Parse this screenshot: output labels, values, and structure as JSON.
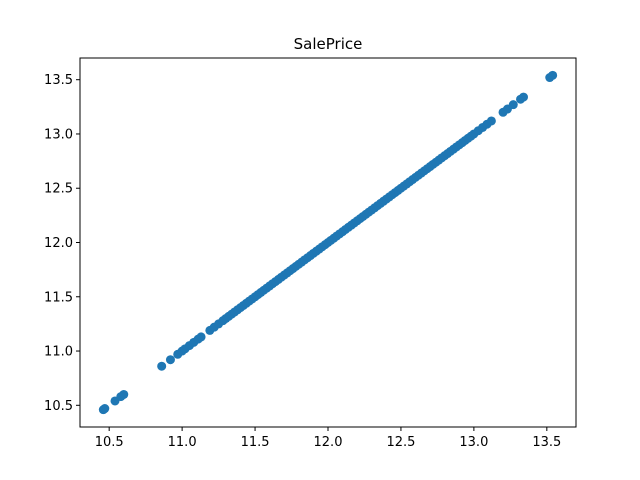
{
  "chart_data": {
    "type": "scatter",
    "title": "SalePrice",
    "xlabel": "",
    "ylabel": "",
    "xlim": [
      10.3,
      13.7
    ],
    "ylim": [
      10.3,
      13.7
    ],
    "xticks": [
      10.5,
      11.0,
      11.5,
      12.0,
      12.5,
      13.0,
      13.5
    ],
    "yticks": [
      10.5,
      11.0,
      11.5,
      12.0,
      12.5,
      13.0,
      13.5
    ],
    "xtick_labels": [
      "10.5",
      "11.0",
      "11.5",
      "12.0",
      "12.5",
      "13.0",
      "13.5"
    ],
    "ytick_labels": [
      "10.5",
      "11.0",
      "11.5",
      "12.0",
      "12.5",
      "13.0",
      "13.5"
    ],
    "grid": false,
    "marker_color": "#1f77b4",
    "series": [
      {
        "x": [
          10.46,
          10.47,
          10.54,
          10.58,
          10.6,
          10.86,
          10.92,
          10.97,
          11.0,
          11.02,
          11.05,
          11.08,
          11.11,
          11.13,
          11.19,
          11.22,
          11.25,
          11.28,
          11.3,
          11.32,
          11.34,
          11.36,
          11.38,
          11.4,
          11.42,
          11.44,
          11.46,
          11.48,
          11.5,
          11.52,
          11.54,
          11.56,
          11.58,
          11.6,
          11.62,
          11.64,
          11.66,
          11.68,
          11.7,
          11.72,
          11.74,
          11.76,
          11.78,
          11.8,
          11.82,
          11.84,
          11.86,
          11.88,
          11.9,
          11.92,
          11.94,
          11.96,
          11.98,
          12.0,
          12.02,
          12.04,
          12.06,
          12.08,
          12.1,
          12.12,
          12.14,
          12.16,
          12.18,
          12.2,
          12.22,
          12.24,
          12.26,
          12.28,
          12.3,
          12.32,
          12.34,
          12.36,
          12.38,
          12.4,
          12.42,
          12.44,
          12.46,
          12.48,
          12.5,
          12.52,
          12.54,
          12.56,
          12.58,
          12.6,
          12.62,
          12.64,
          12.66,
          12.68,
          12.7,
          12.72,
          12.74,
          12.76,
          12.78,
          12.8,
          12.82,
          12.84,
          12.86,
          12.88,
          12.9,
          12.92,
          12.94,
          12.96,
          12.98,
          13.0,
          13.03,
          13.06,
          13.09,
          13.12,
          13.2,
          13.23,
          13.27,
          13.32,
          13.34,
          13.52,
          13.54
        ],
        "y": [
          10.46,
          10.47,
          10.54,
          10.58,
          10.6,
          10.86,
          10.92,
          10.97,
          11.0,
          11.02,
          11.05,
          11.08,
          11.11,
          11.13,
          11.19,
          11.22,
          11.25,
          11.28,
          11.3,
          11.32,
          11.34,
          11.36,
          11.38,
          11.4,
          11.42,
          11.44,
          11.46,
          11.48,
          11.5,
          11.52,
          11.54,
          11.56,
          11.58,
          11.6,
          11.62,
          11.64,
          11.66,
          11.68,
          11.7,
          11.72,
          11.74,
          11.76,
          11.78,
          11.8,
          11.82,
          11.84,
          11.86,
          11.88,
          11.9,
          11.92,
          11.94,
          11.96,
          11.98,
          12.0,
          12.02,
          12.04,
          12.06,
          12.08,
          12.1,
          12.12,
          12.14,
          12.16,
          12.18,
          12.2,
          12.22,
          12.24,
          12.26,
          12.28,
          12.3,
          12.32,
          12.34,
          12.36,
          12.38,
          12.4,
          12.42,
          12.44,
          12.46,
          12.48,
          12.5,
          12.52,
          12.54,
          12.56,
          12.58,
          12.6,
          12.62,
          12.64,
          12.66,
          12.68,
          12.7,
          12.72,
          12.74,
          12.76,
          12.78,
          12.8,
          12.82,
          12.84,
          12.86,
          12.88,
          12.9,
          12.92,
          12.94,
          12.96,
          12.98,
          13.0,
          13.03,
          13.06,
          13.09,
          13.12,
          13.2,
          13.23,
          13.27,
          13.32,
          13.34,
          13.52,
          13.54
        ]
      }
    ]
  }
}
